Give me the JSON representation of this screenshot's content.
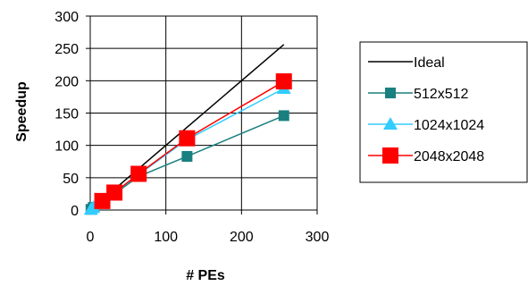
{
  "chart_data": {
    "type": "line",
    "xlabel": "# PEs",
    "ylabel": "Speedup",
    "xlim": [
      0,
      300
    ],
    "ylim": [
      0,
      300
    ],
    "x_ticks": [
      "0",
      "100",
      "200",
      "300"
    ],
    "y_ticks": [
      "0",
      "50",
      "100",
      "150",
      "200",
      "250",
      "300"
    ],
    "grid": true,
    "legend_position": "right",
    "series": [
      {
        "name": "Ideal",
        "color": "#000000",
        "marker": "none",
        "x": [
          0,
          256
        ],
        "y": [
          0,
          256
        ]
      },
      {
        "name": "512x512",
        "color": "#1a7f7f",
        "marker": "square",
        "x": [
          1,
          4,
          16,
          32,
          64,
          128,
          256
        ],
        "y": [
          1,
          4,
          13,
          25,
          52,
          83,
          146
        ]
      },
      {
        "name": "1024x1024",
        "color": "#33ccff",
        "marker": "triangle",
        "x": [
          1,
          4,
          16,
          32,
          64,
          128,
          256
        ],
        "y": [
          1,
          4,
          14,
          27,
          55,
          109,
          188
        ]
      },
      {
        "name": "2048x2048",
        "color": "#ff0000",
        "marker": "square-large",
        "x": [
          16,
          32,
          64,
          128,
          256
        ],
        "y": [
          14,
          27,
          56,
          111,
          199
        ]
      }
    ]
  }
}
